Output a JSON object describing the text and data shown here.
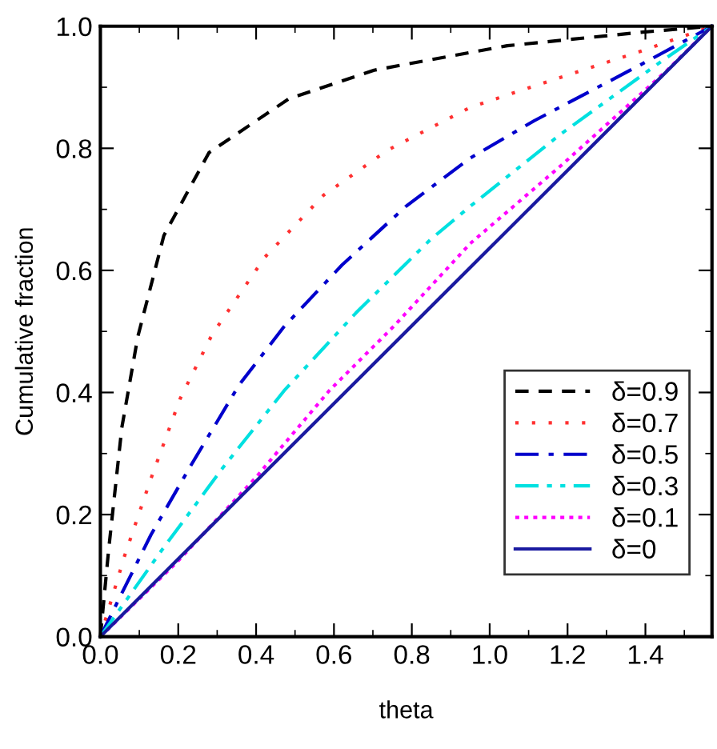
{
  "chart_data": {
    "type": "line",
    "xlabel": "theta",
    "ylabel": "Cumulative fraction",
    "xlim": [
      0,
      1.571
    ],
    "ylim": [
      0,
      1.0
    ],
    "xticks": [
      "0.0",
      0.2,
      0.4,
      0.6,
      0.8,
      "1.0",
      1.2,
      1.4
    ],
    "yticks": [
      "0.0",
      0.2,
      0.4,
      0.6,
      0.8,
      "1.0"
    ],
    "grid": false,
    "legend": "lower right",
    "marker": "none",
    "series": [
      {
        "name": "δ=0.9",
        "color": "#000000",
        "line_style": "dashed",
        "x": [
          0,
          0.021,
          0.055,
          0.096,
          0.163,
          0.279,
          0.484,
          0.703,
          1.045,
          1.388,
          1.571
        ],
        "values": [
          0,
          0.141,
          0.342,
          0.491,
          0.657,
          0.793,
          0.881,
          0.928,
          0.968,
          0.99,
          1.0
        ]
      },
      {
        "name": "δ=0.7",
        "color": "#ff3030",
        "line_style": "dotted",
        "x": [
          0,
          0.062,
          0.13,
          0.205,
          0.287,
          0.423,
          0.573,
          0.738,
          0.95,
          1.114,
          1.388,
          1.571
        ],
        "values": [
          0,
          0.132,
          0.259,
          0.39,
          0.495,
          0.622,
          0.723,
          0.797,
          0.867,
          0.902,
          0.959,
          1.0
        ]
      },
      {
        "name": "δ=0.5",
        "color": "#0000cc",
        "line_style": "dashdot",
        "x": [
          0,
          0.048,
          0.13,
          0.233,
          0.356,
          0.472,
          0.621,
          0.785,
          0.95,
          1.114,
          1.388,
          1.571
        ],
        "values": [
          0,
          0.062,
          0.167,
          0.281,
          0.412,
          0.508,
          0.609,
          0.705,
          0.784,
          0.845,
          0.937,
          1.0
        ]
      },
      {
        "name": "δ=0.3",
        "color": "#00e0e0",
        "line_style": "dashdotdot",
        "x": [
          0,
          0.157,
          0.315,
          0.472,
          0.656,
          0.847,
          0.95,
          1.182,
          1.429,
          1.571
        ],
        "values": [
          0,
          0.141,
          0.277,
          0.403,
          0.53,
          0.65,
          0.705,
          0.823,
          0.937,
          1.0
        ]
      },
      {
        "name": "δ=0.1",
        "color": "#ff00ff",
        "line_style": "densedotted",
        "x": [
          0,
          0.198,
          0.397,
          0.588,
          0.753,
          0.95,
          1.182,
          1.456,
          1.571
        ],
        "values": [
          0,
          0.123,
          0.259,
          0.403,
          0.508,
          0.644,
          0.771,
          0.928,
          1.0
        ]
      },
      {
        "name": "δ=0",
        "color": "#1a1aa0",
        "line_style": "solid",
        "x": [
          0,
          1.571
        ],
        "values": [
          0,
          1.0
        ]
      }
    ]
  }
}
